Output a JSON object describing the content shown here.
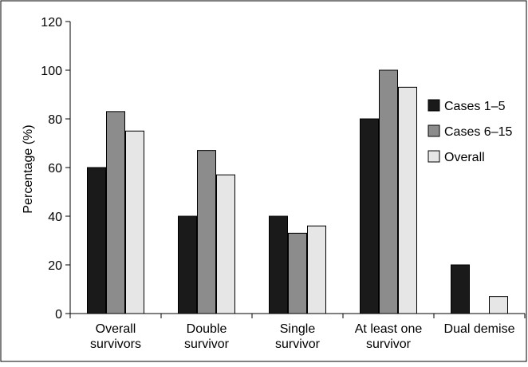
{
  "chart_data": {
    "type": "bar",
    "title": "",
    "xlabel": "",
    "ylabel": "Percentage (%)",
    "ylim": [
      0,
      120
    ],
    "yticks": [
      0,
      20,
      40,
      60,
      80,
      100,
      120
    ],
    "grid": false,
    "legend_position": "right",
    "categories": [
      [
        "Overall",
        "survivors"
      ],
      [
        "Double",
        "survivor"
      ],
      [
        "Single",
        "survivor"
      ],
      [
        "At least one",
        "survivor"
      ],
      [
        "Dual demise"
      ]
    ],
    "series": [
      {
        "name": "Cases 1–5",
        "color": "#1a1a1a",
        "values": [
          60,
          40,
          40,
          80,
          20
        ]
      },
      {
        "name": "Cases 6–15",
        "color": "#8c8c8c",
        "values": [
          83,
          67,
          33,
          100,
          0
        ]
      },
      {
        "name": "Overall",
        "color": "#e6e6e6",
        "values": [
          75,
          57,
          36,
          93,
          7
        ]
      }
    ]
  }
}
